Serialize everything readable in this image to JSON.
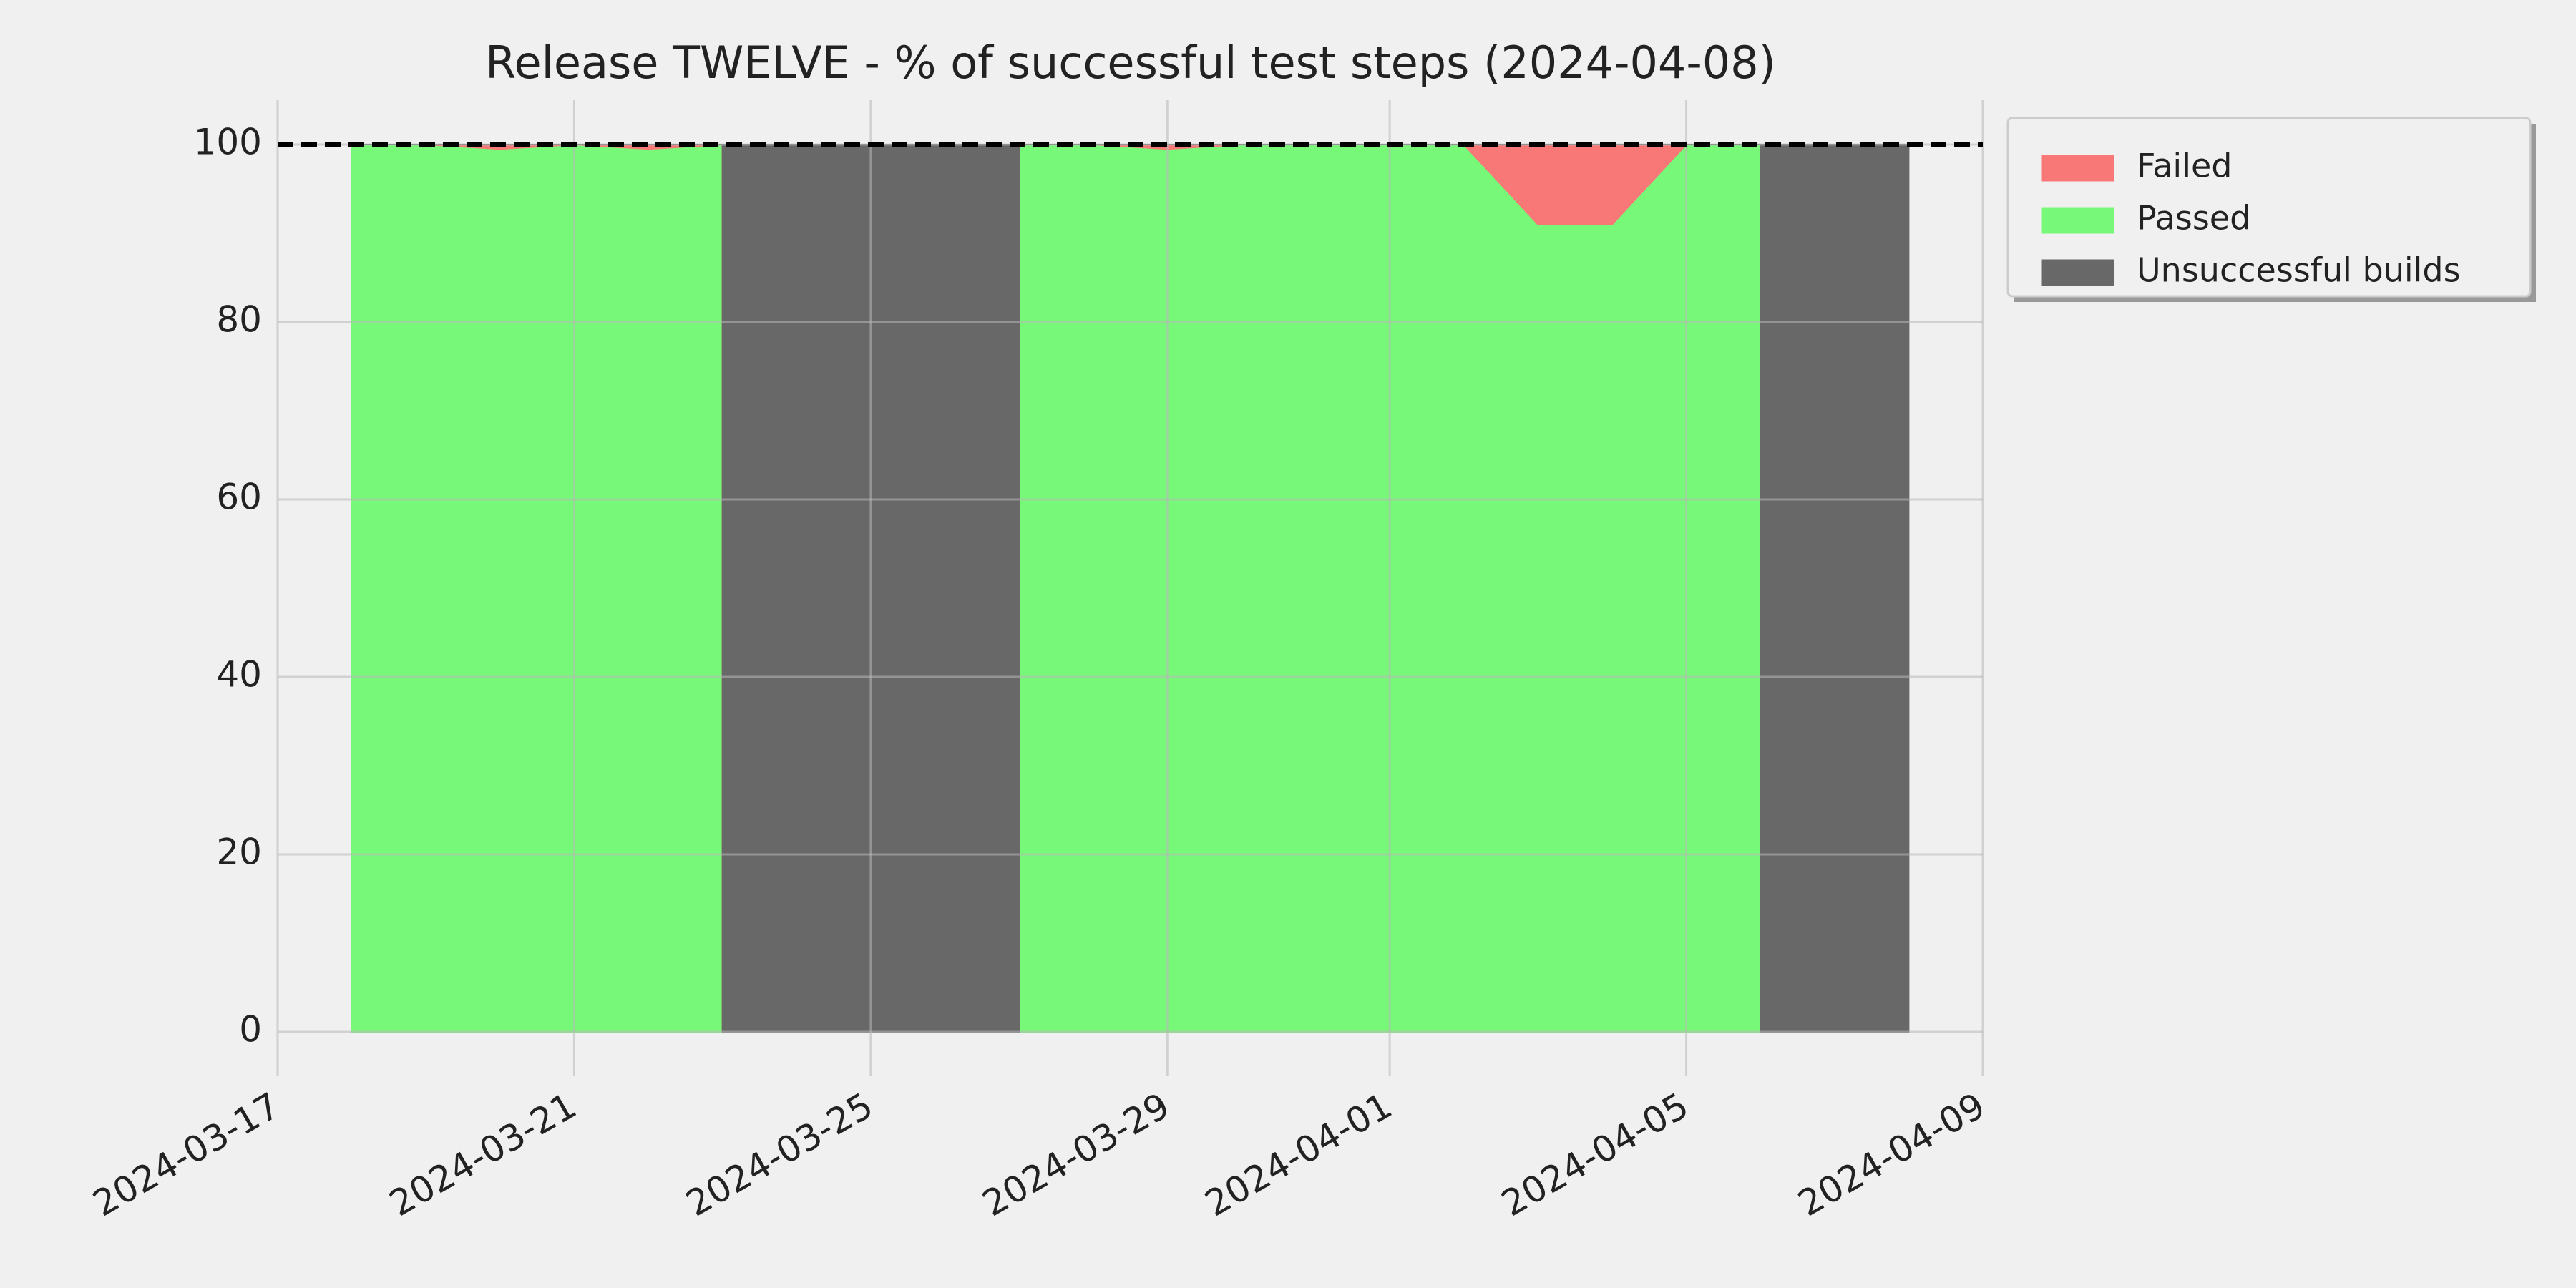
{
  "chart_data": {
    "type": "stacked_area",
    "title": "Release TWELVE - % of successful test steps (2024-04-08)",
    "x": [
      "2024-03-18",
      "2024-03-19",
      "2024-03-20",
      "2024-03-21",
      "2024-03-22",
      "2024-03-23",
      "2024-03-23",
      "2024-03-27",
      "2024-03-27",
      "2024-03-28",
      "2024-03-29",
      "2024-03-30",
      "2024-03-31",
      "2024-04-01",
      "2024-04-02",
      "2024-04-03",
      "2024-04-04",
      "2024-04-05",
      "2024-04-06",
      "2024-04-06",
      "2024-04-08"
    ],
    "series": [
      {
        "name": "Failed",
        "color": "#f87878",
        "values": [
          0,
          0,
          0.5,
          0,
          0.5,
          0,
          0,
          0,
          0,
          0,
          0.5,
          0,
          0,
          0,
          0,
          9,
          9,
          0,
          0,
          0,
          0
        ]
      },
      {
        "name": "Passed",
        "color": "#78f878",
        "values": [
          100,
          100,
          99.5,
          100,
          99.5,
          100,
          0,
          0,
          100,
          100,
          99.5,
          100,
          100,
          100,
          100,
          91,
          91,
          100,
          100,
          0,
          0
        ]
      },
      {
        "name": "Unsuccessful builds",
        "color": "#686868",
        "values": [
          0,
          0,
          0,
          0,
          0,
          0,
          100,
          100,
          0,
          0,
          0,
          0,
          0,
          0,
          0,
          0,
          0,
          0,
          0,
          100,
          100
        ]
      }
    ],
    "reference_line": 100,
    "xlim": [
      "2024-03-17",
      "2024-04-09"
    ],
    "xticks": [
      "2024-03-17",
      "2024-03-21",
      "2024-03-25",
      "2024-03-29",
      "2024-04-01",
      "2024-04-05",
      "2024-04-09"
    ],
    "ylim": [
      -5,
      105
    ],
    "yticks": [
      0,
      20,
      40,
      60,
      80,
      100
    ],
    "grid": true,
    "legend": "outside-right"
  }
}
